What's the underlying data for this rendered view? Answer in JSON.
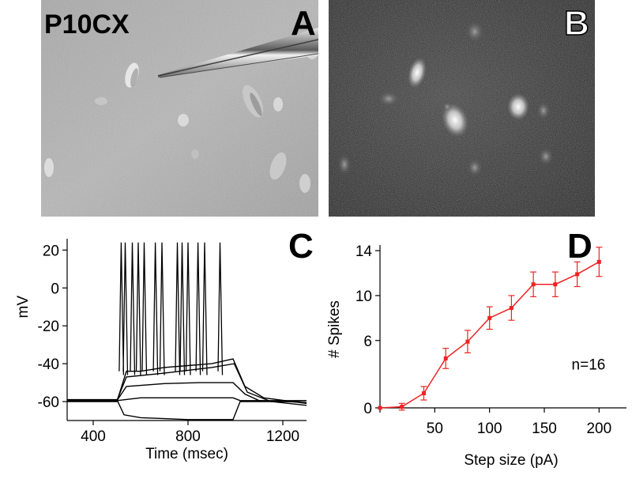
{
  "panel_a": {
    "letter": "A",
    "label": "P10CX"
  },
  "panel_b": {
    "letter": "B"
  },
  "chart_data": [
    {
      "panel": "C",
      "type": "line",
      "xlabel": "Time (msec)",
      "ylabel": "mV",
      "x_ticks": [
        400,
        800,
        1200
      ],
      "y_ticks": [
        20,
        0,
        -20,
        -40,
        -60
      ],
      "xlim": [
        290,
        1300
      ],
      "ylim": [
        -70,
        26
      ],
      "grid": false,
      "step_window_ms": [
        500,
        1000
      ],
      "resting_potential_mv": -59,
      "series": [
        {
          "x": [
            290,
            500,
            530,
            600,
            700,
            800,
            900,
            990,
            1020,
            1100,
            1200,
            1300
          ],
          "y": [
            -59,
            -59,
            -67,
            -68.5,
            -69,
            -69.5,
            -69.5,
            -69.5,
            -60,
            -60,
            -60,
            -59.5
          ]
        },
        {
          "x": [
            290,
            500,
            600,
            800,
            990,
            1020,
            1300
          ],
          "y": [
            -59.5,
            -59.5,
            -58,
            -58,
            -58,
            -59.5,
            -59.5
          ]
        },
        {
          "x": [
            290,
            500,
            540,
            700,
            850,
            990,
            1040,
            1100,
            1300
          ],
          "y": [
            -59.5,
            -59.5,
            -52,
            -50.5,
            -50,
            -50,
            -56,
            -59.5,
            -60.5
          ]
        },
        {
          "x": [
            290,
            500,
            540,
            700,
            900,
            995,
            1050,
            1150,
            1300
          ],
          "y": [
            -59.5,
            -59.5,
            -47,
            -45,
            -42,
            -40,
            -55,
            -60,
            -62
          ]
        },
        {
          "x": [
            290,
            500,
            540,
            600,
            700,
            800,
            900,
            990,
            1040,
            1120,
            1300
          ],
          "y": [
            -60,
            -60,
            -44,
            -44,
            -42,
            -41,
            -40,
            -37.5,
            -52,
            -58,
            -61
          ]
        }
      ],
      "spike_times_ms": [
        518,
        535,
        565,
        590,
        615,
        662,
        690,
        755,
        775,
        800,
        842,
        870,
        935
      ],
      "spike_peak_mv": 24,
      "spike_trough_mv": -44
    },
    {
      "panel": "D",
      "type": "line",
      "xlabel": "Step size (pA)",
      "ylabel": "# Spikes",
      "x_ticks": [
        0,
        50,
        100,
        150,
        200
      ],
      "y_ticks": [
        0,
        6,
        10,
        14
      ],
      "xlim": [
        0,
        225
      ],
      "ylim": [
        0,
        14.5
      ],
      "grid": false,
      "color": "#ee2222",
      "series": [
        {
          "x": [
            0,
            20,
            40,
            60,
            80,
            100,
            120,
            140,
            160,
            180,
            200
          ],
          "y": [
            0,
            0.1,
            1.3,
            4.4,
            5.9,
            8.0,
            8.9,
            11.0,
            11.0,
            11.9,
            13.0
          ],
          "err": [
            0,
            0.3,
            0.6,
            0.9,
            1.0,
            1.0,
            1.1,
            1.1,
            1.1,
            1.1,
            1.3
          ]
        }
      ],
      "annotation": "n=16"
    }
  ],
  "panel_c": {
    "letter": "C"
  },
  "panel_d": {
    "letter": "D"
  }
}
